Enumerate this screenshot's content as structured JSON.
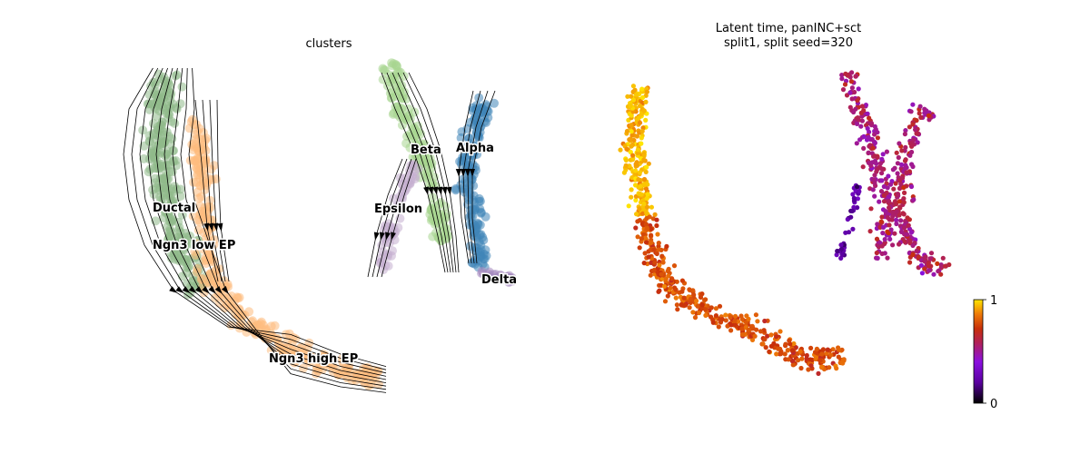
{
  "chart_data": [
    {
      "type": "scatter",
      "title": "clusters",
      "legend": "on data",
      "streamlines": true,
      "clusters": [
        {
          "name": "Ductal",
          "color": "#8fb98b"
        },
        {
          "name": "Ngn3 low EP",
          "color": "#8fb98b"
        },
        {
          "name": "Ngn3 high EP",
          "color": "#fdbb7e"
        },
        {
          "name": "Beta",
          "color": "#a8d58f"
        },
        {
          "name": "Alpha",
          "color": "#3f85b8"
        },
        {
          "name": "Epsilon",
          "color": "#c4aed0"
        },
        {
          "name": "Delta",
          "color": "#a58bc0"
        }
      ]
    },
    {
      "type": "scatter",
      "title_lines": [
        "Latent time, panINC+sct",
        "split1, split seed=320"
      ],
      "colormap": "gnuplot",
      "colorbar": {
        "min": 0,
        "max": 1,
        "ticks": [
          "0",
          "1"
        ]
      },
      "colors": {
        "low": "#000000",
        "mid_low": "#8000ff",
        "mid": "#c0250d",
        "mid_high": "#e8700a",
        "high": "#ffe100"
      }
    }
  ]
}
